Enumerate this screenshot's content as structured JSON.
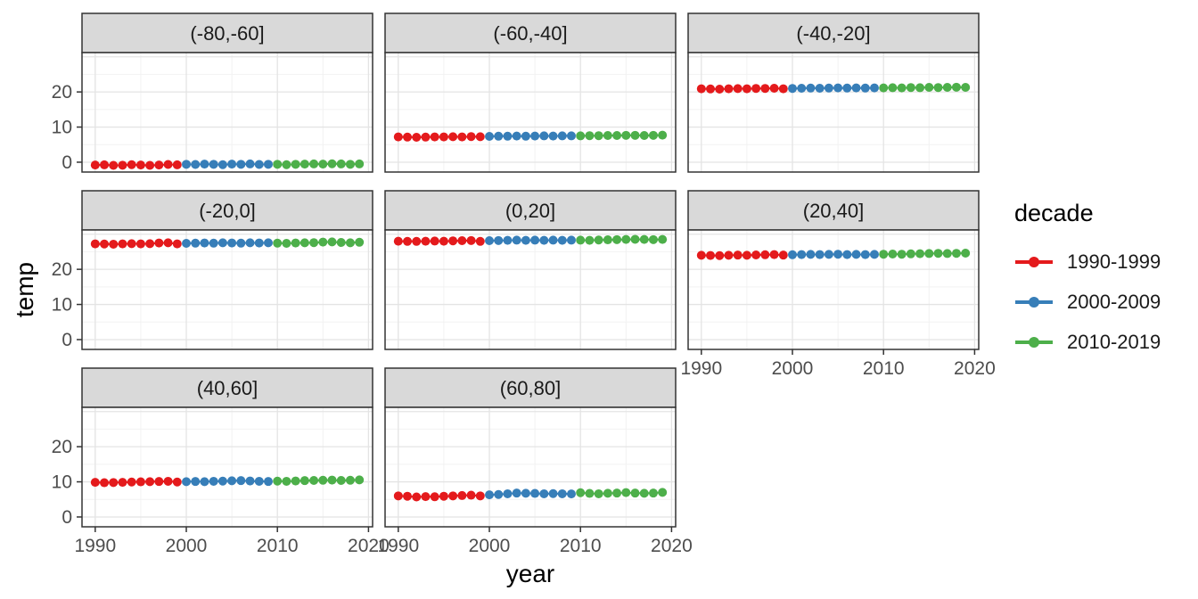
{
  "figure": {
    "background": "#ffffff",
    "description": "Faceted scatter/line plot of mean temperature by year for latitude bands, colored by decade (ggplot-style facet grid)"
  },
  "chart_data": {
    "type": "scatter",
    "xlabel": "year",
    "ylabel": "temp",
    "legend_title": "decade",
    "legend_position": "right",
    "grid": true,
    "panel_fill": "#ffffff",
    "panel_border": "#333333",
    "strip_fill": "#d9d9d9",
    "grid_major_color": "#e4e4e4",
    "grid_minor_color": "#f2f2f2",
    "axis_text_color": "#4d4d4d",
    "x_range": [
      1988.55,
      2020.45
    ],
    "y_range": [
      -2.8,
      31.2
    ],
    "x_ticks": [
      1990,
      2000,
      2010,
      2020
    ],
    "y_ticks": [
      0,
      10,
      20
    ],
    "x_major_gridlines": [
      1990,
      2000,
      2010,
      2020
    ],
    "x_minor_gridlines": [
      1995,
      2005,
      2015
    ],
    "y_major_gridlines": [
      0,
      10,
      20,
      30
    ],
    "y_minor_gridlines": [
      5,
      15,
      25
    ],
    "x": [
      1990,
      1991,
      1992,
      1993,
      1994,
      1995,
      1996,
      1997,
      1998,
      1999,
      2000,
      2001,
      2002,
      2003,
      2004,
      2005,
      2006,
      2007,
      2008,
      2009,
      2010,
      2011,
      2012,
      2013,
      2014,
      2015,
      2016,
      2017,
      2018,
      2019
    ],
    "series": [
      {
        "name": "1990-1999",
        "color": "#E41A1C",
        "start": 1990,
        "end": 1999
      },
      {
        "name": "2000-2009",
        "color": "#377EB8",
        "start": 2000,
        "end": 2009
      },
      {
        "name": "2010-2019",
        "color": "#4DAF4A",
        "start": 2010,
        "end": 2019
      }
    ],
    "facets": [
      {
        "label": "(-80,-60]",
        "values": [
          -0.8,
          -0.75,
          -0.9,
          -0.85,
          -0.7,
          -0.8,
          -0.9,
          -0.8,
          -0.65,
          -0.75,
          -0.6,
          -0.65,
          -0.55,
          -0.6,
          -0.7,
          -0.55,
          -0.6,
          -0.5,
          -0.65,
          -0.6,
          -0.6,
          -0.7,
          -0.6,
          -0.55,
          -0.5,
          -0.55,
          -0.45,
          -0.5,
          -0.6,
          -0.5
        ]
      },
      {
        "label": "(-60,-40]",
        "values": [
          7.2,
          7.15,
          7.1,
          7.15,
          7.2,
          7.2,
          7.25,
          7.2,
          7.3,
          7.25,
          7.35,
          7.4,
          7.4,
          7.45,
          7.4,
          7.45,
          7.5,
          7.45,
          7.5,
          7.5,
          7.5,
          7.55,
          7.55,
          7.6,
          7.6,
          7.65,
          7.65,
          7.6,
          7.65,
          7.7
        ]
      },
      {
        "label": "(-40,-20]",
        "values": [
          20.9,
          20.85,
          20.8,
          20.9,
          20.95,
          20.9,
          21.0,
          21.0,
          21.05,
          20.9,
          21.0,
          21.05,
          21.1,
          21.05,
          21.1,
          21.15,
          21.1,
          21.15,
          21.1,
          21.15,
          21.15,
          21.2,
          21.15,
          21.25,
          21.2,
          21.3,
          21.25,
          21.3,
          21.35,
          21.3
        ]
      },
      {
        "label": "(-20,0]",
        "values": [
          27.25,
          27.2,
          27.15,
          27.25,
          27.3,
          27.25,
          27.3,
          27.5,
          27.55,
          27.25,
          27.4,
          27.45,
          27.5,
          27.45,
          27.55,
          27.5,
          27.45,
          27.55,
          27.5,
          27.55,
          27.45,
          27.4,
          27.5,
          27.55,
          27.6,
          27.75,
          27.8,
          27.65,
          27.55,
          27.7
        ]
      },
      {
        "label": "(0,20]",
        "values": [
          28.0,
          27.95,
          27.95,
          28.0,
          28.05,
          28.0,
          28.1,
          28.15,
          28.2,
          27.95,
          28.15,
          28.2,
          28.25,
          28.3,
          28.25,
          28.3,
          28.25,
          28.3,
          28.25,
          28.3,
          28.3,
          28.25,
          28.35,
          28.4,
          28.45,
          28.5,
          28.55,
          28.5,
          28.45,
          28.5
        ]
      },
      {
        "label": "(20,40]",
        "values": [
          24.0,
          23.95,
          23.9,
          24.0,
          24.05,
          24.0,
          24.1,
          24.15,
          24.2,
          24.05,
          24.15,
          24.2,
          24.25,
          24.2,
          24.25,
          24.3,
          24.2,
          24.25,
          24.2,
          24.25,
          24.3,
          24.35,
          24.3,
          24.4,
          24.45,
          24.5,
          24.55,
          24.5,
          24.55,
          24.6
        ]
      },
      {
        "label": "(40,60]",
        "values": [
          9.85,
          9.75,
          9.8,
          9.85,
          9.95,
          10.0,
          10.05,
          10.1,
          10.15,
          9.95,
          10.05,
          10.1,
          10.05,
          10.15,
          10.2,
          10.3,
          10.35,
          10.25,
          10.15,
          10.1,
          10.2,
          10.15,
          10.25,
          10.35,
          10.4,
          10.45,
          10.5,
          10.4,
          10.45,
          10.55
        ]
      },
      {
        "label": "(60,80]",
        "values": [
          6.0,
          5.9,
          5.7,
          5.8,
          5.75,
          5.9,
          6.0,
          6.1,
          6.2,
          6.0,
          6.3,
          6.4,
          6.6,
          6.8,
          6.75,
          6.7,
          6.6,
          6.65,
          6.6,
          6.55,
          6.9,
          6.7,
          6.6,
          6.75,
          6.8,
          6.95,
          6.8,
          6.75,
          6.8,
          7.0
        ]
      }
    ]
  }
}
